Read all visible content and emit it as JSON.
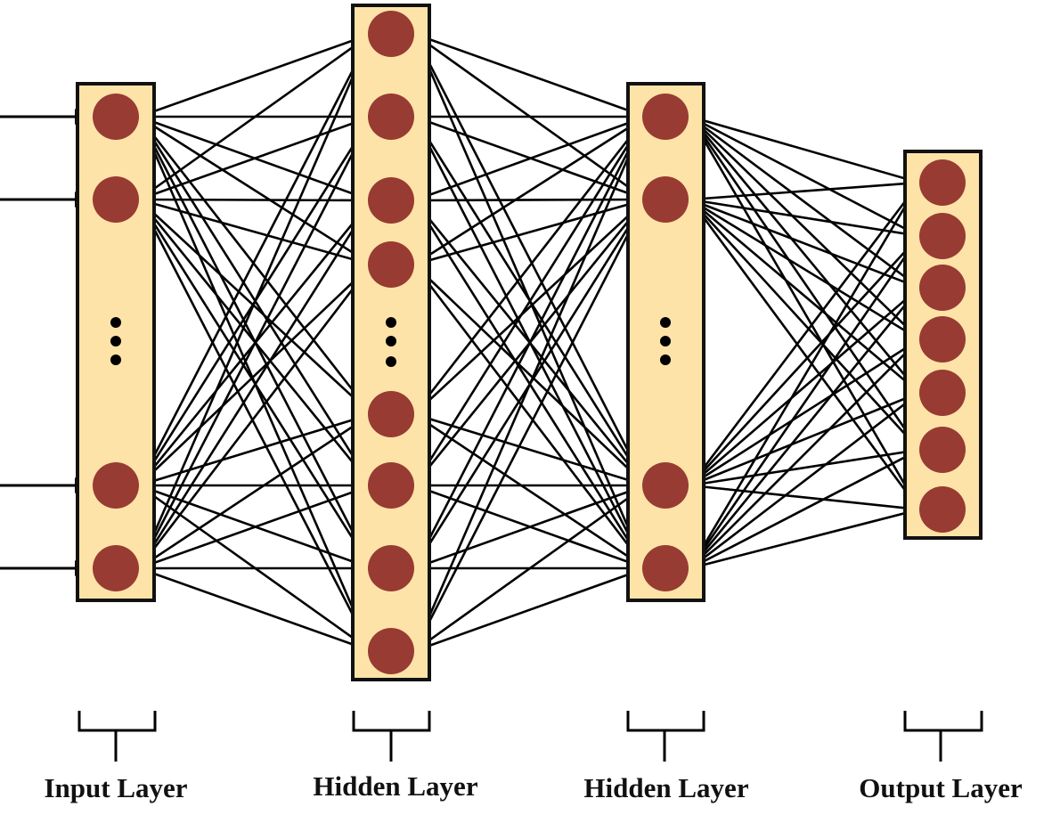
{
  "diagram": {
    "type": "feed-forward neural network",
    "colors": {
      "layer_fill": "#fde3a7",
      "layer_border": "#111111",
      "node_fill": "#983b33",
      "edge": "#000000",
      "ellipsis": "#000000"
    },
    "layers": [
      {
        "label": "Input Layer",
        "visible_nodes": 4,
        "ellipsis_after": 2,
        "has_input_arrows": true
      },
      {
        "label": "Hidden Layer",
        "visible_nodes": 8,
        "ellipsis_after": 4,
        "has_input_arrows": false
      },
      {
        "label": "Hidden Layer",
        "visible_nodes": 4,
        "ellipsis_after": 2,
        "has_input_arrows": false
      },
      {
        "label": "Output Layer",
        "visible_nodes": 7,
        "ellipsis_after": null,
        "has_input_arrows": false
      }
    ],
    "connections": "fully-connected"
  }
}
